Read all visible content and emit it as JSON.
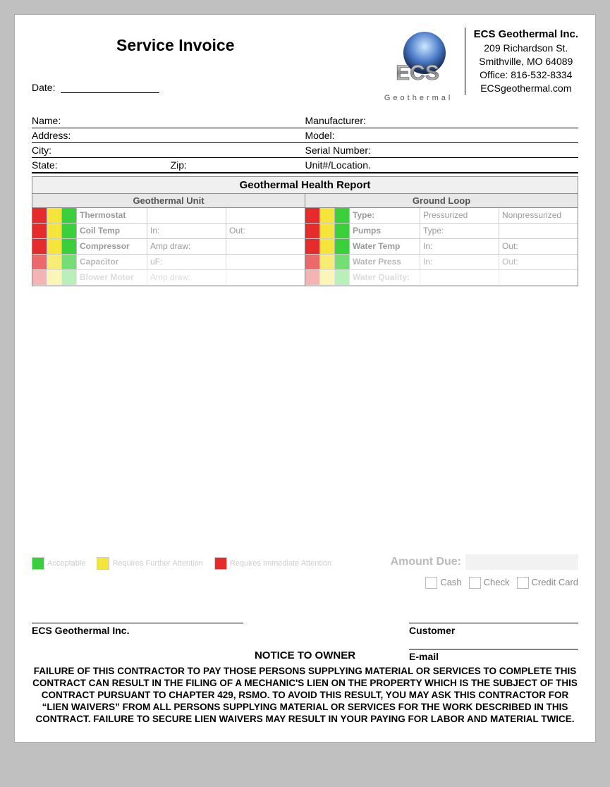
{
  "title": "Service Invoice",
  "date_label": "Date:",
  "company": {
    "name": "ECS Geothermal Inc.",
    "addr1": "209 Richardson St.",
    "addr2": "Smithville, MO 64089",
    "phone": "Office: 816-532-8334",
    "web": "ECSgeothermal.com",
    "logo_text": "Geothermal"
  },
  "fields": {
    "name": "Name:",
    "manufacturer": "Manufacturer:",
    "address": "Address:",
    "model": "Model:",
    "city": "City:",
    "serial": "Serial Number:",
    "state": "State:",
    "zip": "Zip:",
    "unit": "Unit#/Location."
  },
  "health": {
    "title": "Geothermal Health Report",
    "left_title": "Geothermal Unit",
    "right_title": "Ground Loop",
    "left_rows": [
      {
        "label": "Thermostat",
        "c1": "",
        "c2": ""
      },
      {
        "label": "Coil Temp",
        "c1": "In:",
        "c2": "Out:"
      },
      {
        "label": "Compressor",
        "c1": "Amp draw:",
        "c2": ""
      },
      {
        "label": "Capacitor",
        "c1": "uF:",
        "c2": ""
      },
      {
        "label": "Blower Motor",
        "c1": "Amp draw:",
        "c2": ""
      }
    ],
    "right_rows": [
      {
        "label": "Type:",
        "c1": "Pressurized",
        "c2": "Nonpressurized"
      },
      {
        "label": "Pumps",
        "c1": "Type:",
        "c2": ""
      },
      {
        "label": "Water Temp",
        "c1": "In:",
        "c2": "Out:"
      },
      {
        "label": "Water Press",
        "c1": "In:",
        "c2": "Out:"
      },
      {
        "label": "Water Quality:",
        "c1": "",
        "c2": ""
      }
    ]
  },
  "legend": {
    "acceptable": "Acceptable",
    "further": "Requires Further Attention",
    "immediate": "Requires Immediate Attention"
  },
  "amount_label": "Amount Due:",
  "payment": {
    "cash": "Cash",
    "check": "Check",
    "cc": "Credit Card"
  },
  "sig": {
    "company": "ECS Geothermal Inc.",
    "customer": "Customer",
    "email": "E-mail"
  },
  "notice_title": "NOTICE TO OWNER",
  "notice": "FAILURE OF THIS CONTRACTOR TO PAY THOSE PERSONS SUPPLYING MATERIAL OR SERVICES TO COMPLETE THIS CONTRACT CAN RESULT IN THE FILING OF A MECHANIC'S LIEN ON THE PROPERTY WHICH IS THE SUBJECT OF THIS CONTRACT PURSUANT TO CHAPTER 429, RSMO. TO AVOID THIS RESULT, YOU MAY ASK THIS CONTRACTOR FOR “LIEN WAIVERS” FROM ALL PERSONS SUPPLYING MATERIAL OR SERVICES FOR THE WORK DESCRIBED IN THIS CONTRACT. FAILURE TO SECURE LIEN WAIVERS MAY RESULT IN YOUR PAYING FOR LABOR AND MATERIAL TWICE.",
  "colors": {
    "red": "#e52b2b",
    "yellow": "#f5e43a",
    "green": "#3bcf3b"
  }
}
